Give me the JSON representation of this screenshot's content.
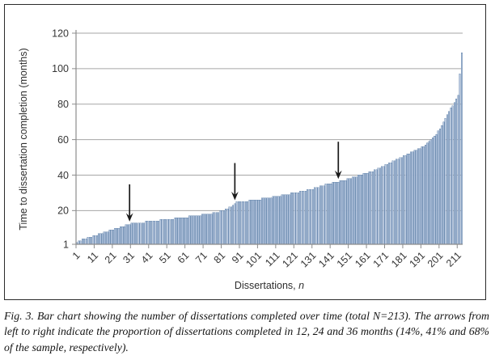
{
  "figure": {
    "caption": "Fig. 3. Bar chart showing the number of dissertations completed over time (total N=213). The arrows from left to right indicate the proportion of dissertations completed in 12, 24 and 36 months (14%, 41% and 68% of the sample, respectively)."
  },
  "chart_data": {
    "type": "bar",
    "title": "",
    "xlabel_text": "Dissertations, ",
    "xlabel_var": "n",
    "ylabel": "Time to dissertation completion (months)",
    "n_total": 213,
    "ylim": [
      1,
      120
    ],
    "y_ticks": [
      1,
      20,
      40,
      60,
      80,
      100,
      120
    ],
    "x_tick_labels": [
      "1",
      "11",
      "21",
      "31",
      "41",
      "51",
      "61",
      "71",
      "81",
      "91",
      "101",
      "111",
      "121",
      "131",
      "141",
      "151",
      "161",
      "171",
      "181",
      "191",
      "201",
      "211"
    ],
    "x_tick_interval": 10,
    "grid": true,
    "legend": "none",
    "bar_fill": "#b7c7e0",
    "bar_stroke": "#5e7fa7",
    "gridline_color": "#a6a6a6",
    "axis_color": "#8c8c8c",
    "arrow_color": "#1a1a1a",
    "values": [
      2,
      3,
      3,
      4,
      4,
      4,
      5,
      5,
      5,
      6,
      6,
      6,
      7,
      7,
      7,
      8,
      8,
      8,
      9,
      9,
      9,
      10,
      10,
      10,
      11,
      11,
      11,
      12,
      12,
      12,
      13,
      13,
      13,
      13,
      13,
      13,
      13,
      13,
      14,
      14,
      14,
      14,
      14,
      14,
      14,
      14,
      15,
      15,
      15,
      15,
      15,
      15,
      15,
      15,
      16,
      16,
      16,
      16,
      16,
      16,
      16,
      16,
      17,
      17,
      17,
      17,
      17,
      17,
      17,
      18,
      18,
      18,
      18,
      18,
      18,
      19,
      19,
      19,
      19,
      20,
      20,
      20,
      21,
      21,
      22,
      22,
      23,
      24,
      25,
      25,
      25,
      25,
      25,
      25,
      25,
      26,
      26,
      26,
      26,
      26,
      26,
      26,
      27,
      27,
      27,
      27,
      27,
      27,
      28,
      28,
      28,
      28,
      28,
      29,
      29,
      29,
      29,
      29,
      30,
      30,
      30,
      30,
      30,
      31,
      31,
      31,
      31,
      32,
      32,
      32,
      32,
      33,
      33,
      33,
      34,
      34,
      34,
      35,
      35,
      35,
      35,
      36,
      36,
      36,
      36,
      37,
      37,
      37,
      37,
      38,
      38,
      38,
      39,
      39,
      39,
      40,
      40,
      40,
      41,
      41,
      41,
      42,
      42,
      42,
      43,
      43,
      44,
      44,
      45,
      45,
      46,
      46,
      47,
      47,
      48,
      48,
      49,
      49,
      50,
      50,
      51,
      51,
      52,
      52,
      53,
      53,
      54,
      54,
      55,
      55,
      56,
      56,
      57,
      58,
      59,
      60,
      61,
      62,
      63,
      65,
      66,
      68,
      70,
      72,
      74,
      76,
      78,
      79,
      81,
      83,
      85,
      97,
      109
    ],
    "arrows": [
      {
        "bar_index": 30,
        "months": 12,
        "share_label": "14%"
      },
      {
        "bar_index": 88,
        "months": 24,
        "share_label": "41%"
      },
      {
        "bar_index": 145,
        "months": 36,
        "share_label": "68%"
      }
    ]
  }
}
